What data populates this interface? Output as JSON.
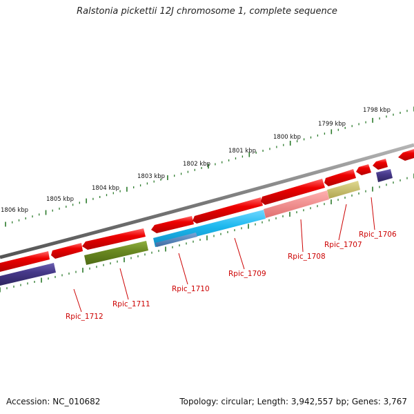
{
  "title": "Ralstonia pickettii 12J chromosome 1, complete sequence",
  "accession": "Accession: NC_010682",
  "topology": "Topology: circular; Length: 3,942,557 bp; Genes: 3,767",
  "scale_labels": [
    "1806 kbp",
    "1805 kbp",
    "1804 kbp",
    "1803 kbp",
    "1802 kbp",
    "1801 kbp",
    "1800 kbp",
    "1799 kbp",
    "1798 kbp"
  ],
  "gene_labels": [
    "Rpic_1712",
    "Rpic_1711",
    "Rpic_1710",
    "Rpic_1709",
    "Rpic_1708",
    "Rpic_1707",
    "Rpic_1706"
  ],
  "colors": {
    "backbone": "#7a7a7a",
    "forward_gene": "#ee0000",
    "reverse_gene": "#4b3f8c",
    "olive_feature": "#6b8a22",
    "cyan_feature": "#1cb8ee",
    "steel_feature": "#4a7fb8",
    "pink_feature": "#f08a8a",
    "khaki_feature": "#c9c06a",
    "tick": "#2a7a2a",
    "label": "#cc0000"
  }
}
